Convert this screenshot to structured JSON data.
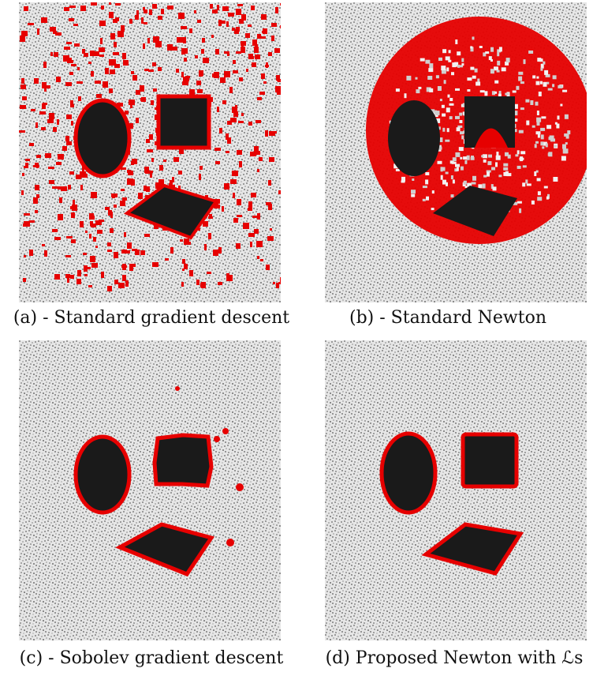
{
  "figure": {
    "panels": [
      {
        "id": "a",
        "caption": "(a) - Standard gradient descent",
        "contour_color": "#e60000"
      },
      {
        "id": "b",
        "caption": "(b) - Standard Newton",
        "contour_color": "#e60000"
      },
      {
        "id": "c",
        "caption": "(c) - Sobolev gradient descent",
        "contour_color": "#e60000"
      },
      {
        "id": "d",
        "caption": "(d) Proposed Newton with ℒs",
        "contour_color": "#e60000"
      }
    ],
    "colors": {
      "shape_fill": "#1a1a1a",
      "contour": "#e60000",
      "noise_light": "#e6e6e6",
      "noise_dark": "#9a9a9a"
    }
  }
}
